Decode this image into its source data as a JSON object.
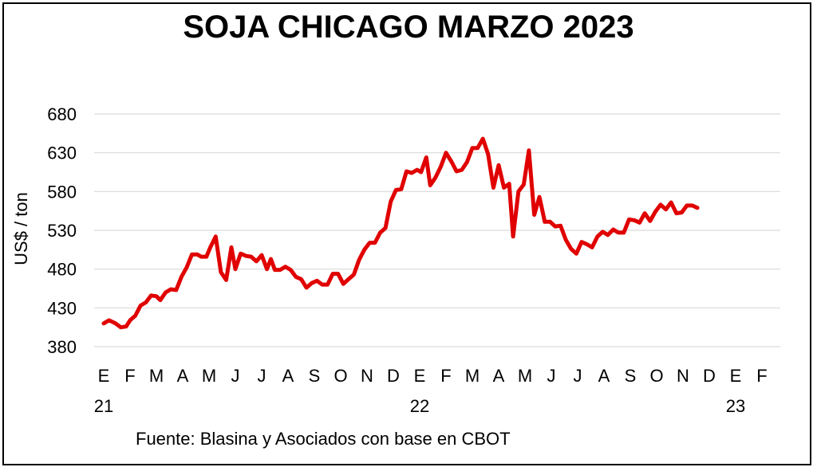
{
  "chart_data": {
    "type": "line",
    "title": "SOJA CHICAGO MARZO 2023",
    "ylabel": "US$ / ton",
    "xlabel": "",
    "ylim": [
      380,
      680
    ],
    "y_ticks": [
      380,
      430,
      480,
      530,
      580,
      630,
      680
    ],
    "grid": "horizontal",
    "line_color": "#e00000",
    "x_months": [
      "E",
      "F",
      "M",
      "A",
      "M",
      "J",
      "J",
      "A",
      "S",
      "O",
      "N",
      "D",
      "E",
      "F",
      "M",
      "A",
      "M",
      "J",
      "J",
      "A",
      "S",
      "O",
      "N",
      "D",
      "E",
      "F"
    ],
    "x_years": [
      {
        "label": "21",
        "month_index": 0
      },
      {
        "label": "22",
        "month_index": 12
      },
      {
        "label": "23",
        "month_index": 24
      }
    ],
    "series": [
      {
        "values": [
          [
            0.0,
            410
          ],
          [
            0.2,
            414
          ],
          [
            0.45,
            410
          ],
          [
            0.65,
            405
          ],
          [
            0.85,
            406
          ],
          [
            1.0,
            414
          ],
          [
            1.2,
            420
          ],
          [
            1.4,
            433
          ],
          [
            1.6,
            437
          ],
          [
            1.8,
            446
          ],
          [
            2.0,
            445
          ],
          [
            2.15,
            440
          ],
          [
            2.35,
            450
          ],
          [
            2.55,
            454
          ],
          [
            2.75,
            453
          ],
          [
            2.95,
            470
          ],
          [
            3.15,
            482
          ],
          [
            3.35,
            499
          ],
          [
            3.55,
            499
          ],
          [
            3.7,
            496
          ],
          [
            3.9,
            496
          ],
          [
            4.05,
            508
          ],
          [
            4.25,
            522
          ],
          [
            4.45,
            476
          ],
          [
            4.65,
            466
          ],
          [
            4.85,
            508
          ],
          [
            5.0,
            480
          ],
          [
            5.2,
            500
          ],
          [
            5.4,
            497
          ],
          [
            5.6,
            496
          ],
          [
            5.8,
            490
          ],
          [
            6.0,
            498
          ],
          [
            6.2,
            480
          ],
          [
            6.35,
            493
          ],
          [
            6.5,
            479
          ],
          [
            6.7,
            479
          ],
          [
            6.9,
            483
          ],
          [
            7.1,
            479
          ],
          [
            7.3,
            470
          ],
          [
            7.5,
            467
          ],
          [
            7.7,
            456
          ],
          [
            7.9,
            462
          ],
          [
            8.1,
            465
          ],
          [
            8.3,
            460
          ],
          [
            8.5,
            460
          ],
          [
            8.7,
            474
          ],
          [
            8.9,
            474
          ],
          [
            9.1,
            461
          ],
          [
            9.3,
            467
          ],
          [
            9.5,
            473
          ],
          [
            9.7,
            492
          ],
          [
            9.9,
            505
          ],
          [
            10.1,
            514
          ],
          [
            10.3,
            514
          ],
          [
            10.5,
            527
          ],
          [
            10.7,
            533
          ],
          [
            10.9,
            567
          ],
          [
            11.1,
            582
          ],
          [
            11.3,
            583
          ],
          [
            11.5,
            606
          ],
          [
            11.7,
            604
          ],
          [
            11.9,
            608
          ],
          [
            12.05,
            605
          ],
          [
            12.25,
            624
          ],
          [
            12.4,
            588
          ],
          [
            12.6,
            598
          ],
          [
            12.8,
            612
          ],
          [
            13.0,
            630
          ],
          [
            13.2,
            619
          ],
          [
            13.4,
            606
          ],
          [
            13.6,
            608
          ],
          [
            13.8,
            618
          ],
          [
            14.0,
            636
          ],
          [
            14.2,
            636
          ],
          [
            14.4,
            648
          ],
          [
            14.6,
            628
          ],
          [
            14.8,
            585
          ],
          [
            15.0,
            614
          ],
          [
            15.2,
            585
          ],
          [
            15.4,
            590
          ],
          [
            15.55,
            522
          ],
          [
            15.75,
            580
          ],
          [
            15.95,
            589
          ],
          [
            16.15,
            633
          ],
          [
            16.35,
            550
          ],
          [
            16.55,
            573
          ],
          [
            16.75,
            541
          ],
          [
            16.95,
            541
          ],
          [
            17.15,
            535
          ],
          [
            17.35,
            536
          ],
          [
            17.55,
            518
          ],
          [
            17.75,
            506
          ],
          [
            17.95,
            500
          ],
          [
            18.15,
            515
          ],
          [
            18.35,
            512
          ],
          [
            18.55,
            508
          ],
          [
            18.75,
            522
          ],
          [
            18.95,
            528
          ],
          [
            19.15,
            524
          ],
          [
            19.35,
            531
          ],
          [
            19.55,
            527
          ],
          [
            19.75,
            527
          ],
          [
            19.95,
            544
          ],
          [
            20.15,
            543
          ],
          [
            20.35,
            540
          ],
          [
            20.55,
            552
          ],
          [
            20.75,
            542
          ],
          [
            20.95,
            554
          ],
          [
            21.15,
            563
          ],
          [
            21.35,
            557
          ],
          [
            21.55,
            566
          ],
          [
            21.75,
            552
          ],
          [
            21.95,
            553
          ],
          [
            22.15,
            562
          ],
          [
            22.35,
            562
          ],
          [
            22.55,
            559
          ]
        ]
      }
    ],
    "source": "Fuente: Blasina y Asociados con base en CBOT"
  }
}
